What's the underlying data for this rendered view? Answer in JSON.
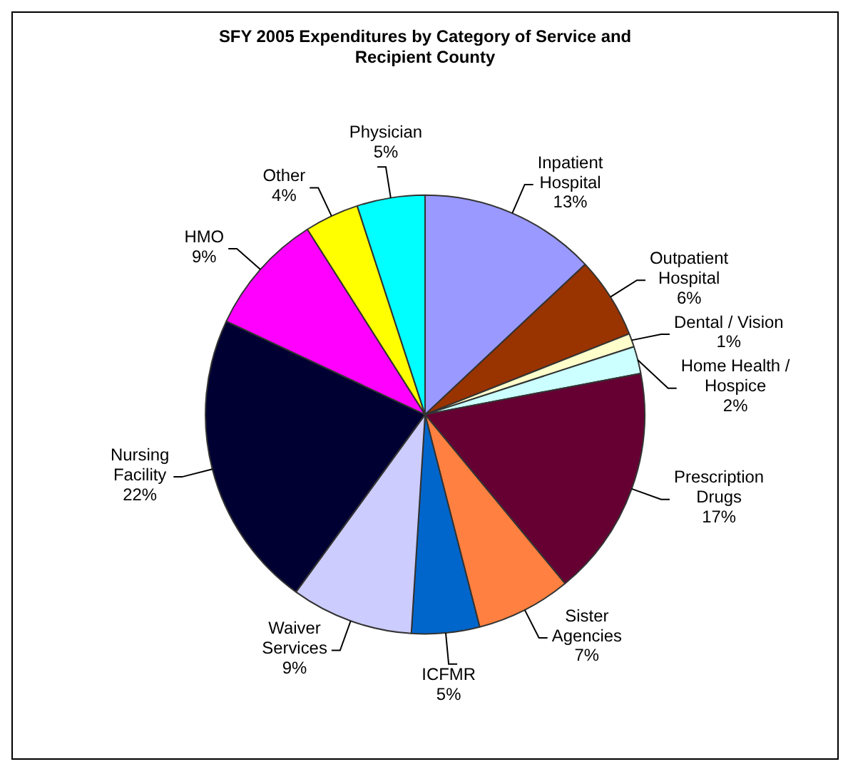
{
  "chart_data": {
    "type": "pie",
    "title": "SFY 2005 Expenditures by Category of Service and Recipient County",
    "categories": [
      "Inpatient Hospital",
      "Outpatient Hospital",
      "Dental / Vision",
      "Home Health / Hospice",
      "Prescription Drugs",
      "Sister Agencies",
      "ICFMR",
      "Waiver Services",
      "Nursing Facility",
      "HMO",
      "Other",
      "Physician"
    ],
    "values": [
      13,
      6,
      1,
      2,
      17,
      7,
      5,
      9,
      22,
      9,
      4,
      5
    ],
    "value_labels": [
      "13%",
      "6%",
      "1%",
      "2%",
      "17%",
      "7%",
      "5%",
      "9%",
      "22%",
      "9%",
      "4%",
      "5%"
    ],
    "colors": [
      "#9999ff",
      "#993300",
      "#ffffcc",
      "#ccffff",
      "#660033",
      "#ff8040",
      "#0066cc",
      "#ccccff",
      "#000033",
      "#ff00ff",
      "#ffff00",
      "#00ffff"
    ],
    "legend": false
  }
}
